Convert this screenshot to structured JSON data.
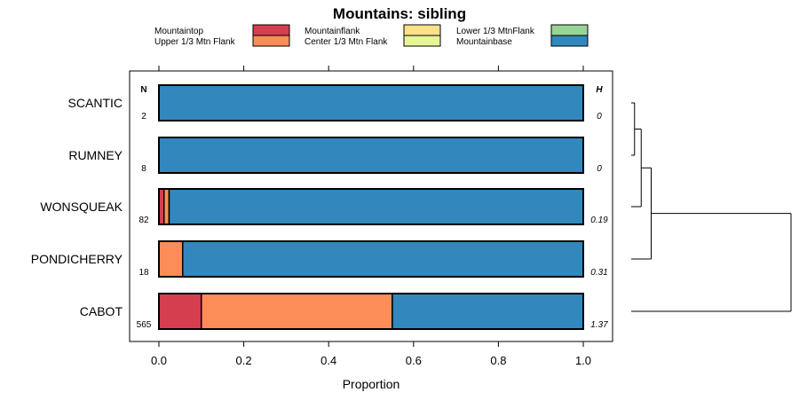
{
  "chart_data": {
    "type": "bar",
    "orientation": "horizontal",
    "stacked": true,
    "title": "Mountains: sibling",
    "xlabel": "Proportion",
    "ylabel": "",
    "xlim": [
      -0.06,
      1.07
    ],
    "xticks": [
      0.0,
      0.2,
      0.4,
      0.6,
      0.8,
      1.0
    ],
    "xtick_labels": [
      "0.0",
      "0.2",
      "0.4",
      "0.6",
      "0.8",
      "1.0"
    ],
    "legend": [
      {
        "name": "Mountaintop",
        "color": "#d53e4f"
      },
      {
        "name": "Upper 1/3 Mtn Flank",
        "color": "#fc8d59"
      },
      {
        "name": "Mountainflank",
        "color": "#fee08b"
      },
      {
        "name": "Center 1/3 Mtn Flank",
        "color": "#e6f598"
      },
      {
        "name": "Lower 1/3 MtnFlank",
        "color": "#99d594"
      },
      {
        "name": "Mountainbase",
        "color": "#3288bd"
      }
    ],
    "n_header": "N",
    "h_header": "H",
    "categories": [
      "SCANTIC",
      "RUMNEY",
      "WONSQUEAK",
      "PONDICHERRY",
      "CABOT"
    ],
    "n_values": [
      "2",
      "8",
      "82",
      "18",
      "565"
    ],
    "h_values": [
      "0",
      "0",
      "0.19",
      "0.31",
      "1.37"
    ],
    "series": [
      {
        "name": "Mountaintop",
        "values": [
          0,
          0,
          0.012,
          0,
          0.1
        ]
      },
      {
        "name": "Upper 1/3 Mtn Flank",
        "values": [
          0,
          0,
          0.012,
          0.056,
          0.45
        ]
      },
      {
        "name": "Mountainflank",
        "values": [
          0,
          0,
          0,
          0,
          0
        ]
      },
      {
        "name": "Center 1/3 Mtn Flank",
        "values": [
          0,
          0,
          0,
          0,
          0
        ]
      },
      {
        "name": "Lower 1/3 MtnFlank",
        "values": [
          0,
          0,
          0,
          0,
          0
        ]
      },
      {
        "name": "Mountainbase",
        "values": [
          1.0,
          1.0,
          0.976,
          0.944,
          0.45
        ]
      }
    ],
    "dendrogram": {
      "leaves": [
        "SCANTIC",
        "RUMNEY",
        "WONSQUEAK",
        "PONDICHERRY",
        "CABOT"
      ],
      "merges": [
        {
          "a": "SCANTIC",
          "b": "RUMNEY",
          "height": 0.5
        },
        {
          "a": "m1",
          "b": "WONSQUEAK",
          "height": 1.5
        },
        {
          "a": "m2",
          "b": "PONDICHERRY",
          "height": 3.0
        },
        {
          "a": "m3",
          "b": "CABOT",
          "height": 24.0
        }
      ]
    }
  }
}
